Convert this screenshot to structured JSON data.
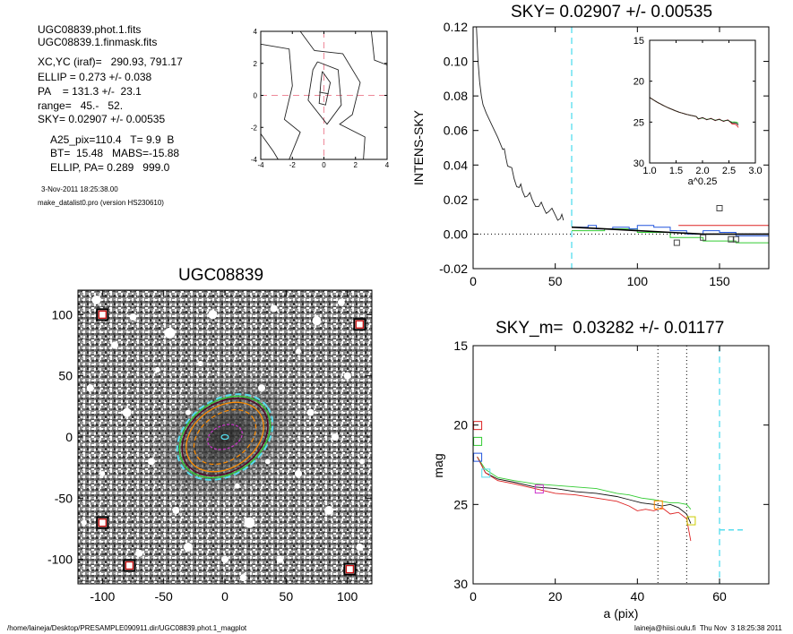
{
  "header": {
    "lines": [
      "UGC08839.phot.1.fits",
      "UGC08839.1.finmask.fits",
      "XC,YC (iraf)=   290.93, 791.17",
      "ELLIP = 0.273 +/- 0.038",
      "PA    = 131.3 +/-  23.1",
      "range=   45.-   52.",
      "SKY= 0.02907 +/- 0.00535",
      "A25_pix=110.4   T= 9.9  B",
      "BT=  15.48   MABS=-15.88",
      "ELLIP, PA= 0.289   999.0"
    ],
    "date": "3-Nov-2011 18:25:38.00",
    "program": "make_datalist0.pro (version HS230610)"
  },
  "footer": {
    "path": "/home/laineja/Desktop/PRESAMPLE090911.dir/UGC08839.phot.1_magplot",
    "user": "laineja@hiisi.oulu.fi  Thu Nov  3 18:25:38 2011"
  },
  "colors": {
    "cyan": "#55ddee",
    "pink": "#ee8899",
    "red": "#dd2222",
    "green": "#33cc33",
    "blue": "#2255dd",
    "orange": "#ff8c00",
    "magenta": "#cc33cc",
    "dark": "#111111"
  },
  "chart_data": [
    {
      "type": "contour",
      "xlim": [
        -4,
        4
      ],
      "ylim": [
        -4,
        4
      ],
      "xticks": [
        "-4",
        "-2",
        "0",
        "2",
        "4"
      ],
      "yticks": [
        "-4",
        "-2",
        "0",
        "2",
        "4"
      ]
    },
    {
      "type": "line",
      "title": "SKY= 0.02907 +/- 0.00535",
      "xlabel": "",
      "ylabel": "INTENS-SKY",
      "xlim": [
        0,
        180
      ],
      "ylim": [
        -0.02,
        0.12
      ],
      "xticks": [
        "0",
        "50",
        "100",
        "150"
      ],
      "yticks": [
        "-0.02",
        "0.00",
        "0.02",
        "0.04",
        "0.06",
        "0.08",
        "0.10",
        "0.12"
      ],
      "sky_line_x": 60,
      "profile": [
        [
          2,
          0.12
        ],
        [
          3,
          0.1
        ],
        [
          4,
          0.088
        ],
        [
          5,
          0.08
        ],
        [
          6,
          0.075
        ],
        [
          8,
          0.07
        ],
        [
          10,
          0.066
        ],
        [
          12,
          0.062
        ],
        [
          15,
          0.056
        ],
        [
          18,
          0.049
        ],
        [
          20,
          0.044
        ],
        [
          22,
          0.039
        ],
        [
          25,
          0.032
        ],
        [
          28,
          0.027
        ],
        [
          30,
          0.025
        ],
        [
          33,
          0.022
        ],
        [
          36,
          0.02
        ],
        [
          40,
          0.016
        ],
        [
          43,
          0.015
        ],
        [
          46,
          0.013
        ],
        [
          50,
          0.011
        ],
        [
          53,
          0.009
        ],
        [
          55,
          0.008
        ]
      ],
      "outer_black": [
        [
          60,
          0.004
        ],
        [
          80,
          0.003
        ],
        [
          100,
          0.002
        ],
        [
          120,
          0.001
        ],
        [
          140,
          0.0
        ],
        [
          160,
          0.0
        ],
        [
          180,
          0.0
        ]
      ],
      "outer_blue": [
        [
          60,
          0.004
        ],
        [
          70,
          0.005
        ],
        [
          75,
          0.003
        ],
        [
          85,
          0.004
        ],
        [
          95,
          0.003
        ],
        [
          100,
          0.005
        ],
        [
          110,
          0.004
        ],
        [
          120,
          0.002
        ],
        [
          130,
          0.0
        ],
        [
          140,
          0.002
        ],
        [
          150,
          0.001
        ],
        [
          160,
          -0.001
        ],
        [
          180,
          -0.002
        ]
      ],
      "outer_green": [
        [
          60,
          0.002
        ],
        [
          80,
          0.003
        ],
        [
          100,
          0.001
        ],
        [
          120,
          -0.002
        ],
        [
          140,
          -0.004
        ],
        [
          160,
          -0.005
        ],
        [
          180,
          -0.005
        ]
      ],
      "outer_red": [
        [
          125,
          0.005
        ],
        [
          180,
          0.005
        ]
      ],
      "squares": [
        [
          124,
          -0.005
        ],
        [
          140,
          -0.002
        ],
        [
          150,
          0.015
        ],
        [
          157,
          -0.003
        ],
        [
          160,
          -0.003
        ]
      ],
      "inset": {
        "xlabel": "a^0.25",
        "xlim": [
          1.0,
          3.0
        ],
        "ylim": [
          15,
          30
        ],
        "xticks": [
          "1.0",
          "1.5",
          "2.0",
          "2.5",
          "3.0"
        ],
        "yticks": [
          "15",
          "20",
          "25",
          "30"
        ]
      }
    },
    {
      "type": "image",
      "title": "UGC08839",
      "xlim": [
        -120,
        120
      ],
      "ylim": [
        -120,
        120
      ],
      "xticks": [
        "-100",
        "-50",
        "0",
        "50",
        "100"
      ],
      "yticks": [
        "-100",
        "-50",
        "0",
        "50",
        "100"
      ],
      "ellipse_pa_deg": 131.3,
      "ellipse_axis_ratio": 0.727,
      "marked_stars": [
        [
          -100,
          100
        ],
        [
          110,
          92
        ],
        [
          -100,
          -70
        ],
        [
          -78,
          -105
        ],
        [
          102,
          -108
        ]
      ]
    },
    {
      "type": "line",
      "title": "SKY_m=  0.03282 +/- 0.01177",
      "xlabel": "a (pix)",
      "ylabel": "mag",
      "xlim": [
        0,
        72
      ],
      "ylim": [
        30,
        15
      ],
      "xticks": [
        "0",
        "20",
        "40",
        "60"
      ],
      "yticks": [
        "15",
        "20",
        "25",
        "30"
      ],
      "range_lines_x": [
        45,
        52
      ],
      "sky_line_x": 60,
      "sky_mag_segment": [
        [
          60,
          26.6
        ],
        [
          66,
          26.6
        ]
      ],
      "series": [
        {
          "color": "#111111",
          "values": [
            [
              1,
              22
            ],
            [
              3,
              23
            ],
            [
              6,
              23.4
            ],
            [
              10,
              23.6
            ],
            [
              15,
              23.9
            ],
            [
              20,
              24
            ],
            [
              25,
              24.2
            ],
            [
              30,
              24.3
            ],
            [
              35,
              24.5
            ],
            [
              38,
              24.7
            ],
            [
              41,
              24.9
            ],
            [
              44,
              25
            ],
            [
              46,
              25.1
            ],
            [
              48,
              25
            ],
            [
              50,
              25.2
            ],
            [
              52,
              25.6
            ],
            [
              53,
              26.2
            ]
          ]
        },
        {
          "color": "#33cc33",
          "values": [
            [
              1,
              22
            ],
            [
              3,
              22.8
            ],
            [
              6,
              23.3
            ],
            [
              10,
              23.5
            ],
            [
              15,
              23.7
            ],
            [
              20,
              23.8
            ],
            [
              25,
              23.9
            ],
            [
              30,
              24
            ],
            [
              35,
              24.3
            ],
            [
              38,
              24.4
            ],
            [
              41,
              24.6
            ],
            [
              44,
              24.7
            ],
            [
              46,
              24.8
            ],
            [
              48,
              24.9
            ],
            [
              50,
              24.9
            ],
            [
              52,
              25
            ],
            [
              53,
              25.3
            ]
          ]
        },
        {
          "color": "#dd2222",
          "values": [
            [
              1,
              22
            ],
            [
              3,
              23
            ],
            [
              6,
              23.5
            ],
            [
              10,
              23.7
            ],
            [
              15,
              24
            ],
            [
              20,
              24.3
            ],
            [
              25,
              24.4
            ],
            [
              30,
              24.6
            ],
            [
              35,
              24.8
            ],
            [
              38,
              25.1
            ],
            [
              40,
              25.4
            ],
            [
              42,
              25.3
            ],
            [
              44,
              25.4
            ],
            [
              46,
              25.2
            ],
            [
              48,
              25.6
            ],
            [
              50,
              25.5
            ],
            [
              52,
              25.9
            ],
            [
              53,
              27.3
            ]
          ]
        }
      ],
      "squares": [
        {
          "x": 1,
          "y": 20,
          "color": "#dd2222"
        },
        {
          "x": 1,
          "y": 21,
          "color": "#33cc33"
        },
        {
          "x": 1,
          "y": 22,
          "color": "#2255dd"
        },
        {
          "x": 3,
          "y": 23,
          "color": "#55ddee"
        },
        {
          "x": 16,
          "y": 24,
          "color": "#cc33cc"
        },
        {
          "x": 45,
          "y": 25,
          "color": "#ff8c00"
        },
        {
          "x": 53,
          "y": 26,
          "color": "#cccc00"
        }
      ]
    }
  ]
}
